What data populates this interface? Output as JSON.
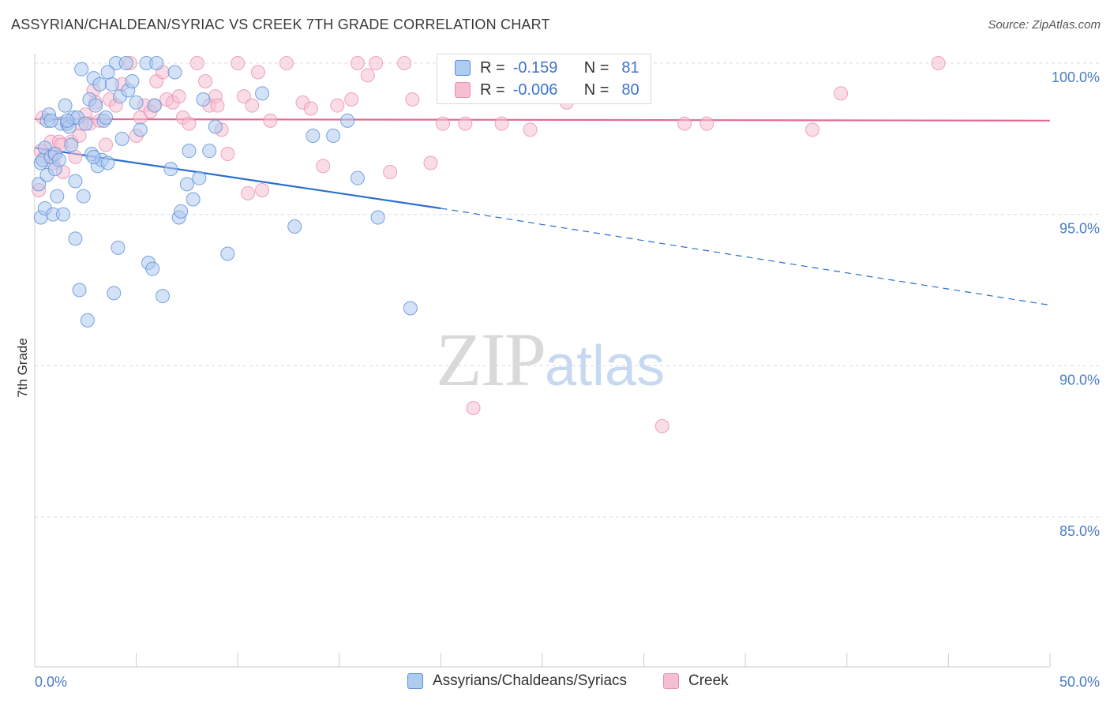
{
  "title": "ASSYRIAN/CHALDEAN/SYRIAC VS CREEK 7TH GRADE CORRELATION CHART",
  "source": "Source: ZipAtlas.com",
  "watermark": {
    "zip": "ZIP",
    "atlas": "atlas"
  },
  "colors": {
    "blue_fill": "#aecbf0",
    "blue_stroke": "#5b8fd6",
    "pink_fill": "#f6bfd1",
    "pink_stroke": "#e88fb0",
    "blue_line": "#2a6fcf",
    "pink_line": "#e06a93",
    "tick_text": "#4a7cc9"
  },
  "legend": {
    "rows": [
      {
        "r_label": "R =",
        "r_value": "-0.159",
        "n_label": "N =",
        "n_value": "81"
      },
      {
        "r_label": "R =",
        "r_value": "-0.006",
        "n_label": "N =",
        "n_value": "80"
      }
    ]
  },
  "bottom_legend": {
    "series1": "Assyrians/Chaldeans/Syriacs",
    "series2": "Creek"
  },
  "chart_data": {
    "type": "scatter",
    "title": "ASSYRIAN/CHALDEAN/SYRIAC VS CREEK 7TH GRADE CORRELATION CHART",
    "xlabel": "",
    "ylabel": "7th Grade",
    "xlim": [
      0,
      50
    ],
    "ylim": [
      80.5,
      100.8
    ],
    "x_tick_labels": [
      "0.0%",
      "50.0%"
    ],
    "y_ticks": [
      85,
      90,
      95,
      100
    ],
    "y_tick_labels": [
      "85.0%",
      "90.0%",
      "95.0%",
      "100.0%"
    ],
    "series": [
      {
        "name": "Assyrians/Chaldeans/Syriacs",
        "r": -0.159,
        "n": 81,
        "trend": {
          "x0": 0,
          "y0": 97.2,
          "x1": 20,
          "y1": 95.2,
          "dash_to_x": 50,
          "dash_to_y": 92.0
        },
        "points": [
          [
            0.2,
            96.0
          ],
          [
            0.3,
            94.9
          ],
          [
            0.3,
            96.7
          ],
          [
            0.4,
            96.8
          ],
          [
            0.5,
            97.2
          ],
          [
            0.5,
            95.2
          ],
          [
            0.6,
            98.1
          ],
          [
            0.6,
            96.3
          ],
          [
            0.7,
            98.3
          ],
          [
            0.8,
            96.9
          ],
          [
            0.9,
            95.0
          ],
          [
            1.0,
            96.5
          ],
          [
            1.0,
            97.0
          ],
          [
            1.2,
            96.8
          ],
          [
            1.3,
            98.0
          ],
          [
            1.4,
            95.0
          ],
          [
            1.5,
            98.6
          ],
          [
            1.6,
            98.0
          ],
          [
            1.7,
            97.9
          ],
          [
            1.8,
            97.3
          ],
          [
            1.9,
            98.2
          ],
          [
            2.0,
            96.1
          ],
          [
            2.0,
            94.2
          ],
          [
            2.1,
            98.2
          ],
          [
            2.2,
            92.5
          ],
          [
            2.3,
            99.8
          ],
          [
            2.4,
            95.6
          ],
          [
            2.5,
            98.0
          ],
          [
            2.6,
            91.5
          ],
          [
            2.7,
            98.8
          ],
          [
            2.8,
            97.0
          ],
          [
            2.9,
            99.5
          ],
          [
            3.0,
            98.6
          ],
          [
            3.1,
            96.6
          ],
          [
            3.2,
            99.3
          ],
          [
            3.3,
            96.8
          ],
          [
            3.4,
            98.1
          ],
          [
            3.5,
            98.2
          ],
          [
            3.6,
            96.7
          ],
          [
            3.8,
            99.3
          ],
          [
            3.9,
            92.4
          ],
          [
            4.0,
            100.0
          ],
          [
            4.1,
            93.9
          ],
          [
            4.2,
            98.9
          ],
          [
            4.3,
            97.5
          ],
          [
            4.5,
            100.0
          ],
          [
            4.6,
            99.1
          ],
          [
            4.8,
            99.4
          ],
          [
            5.0,
            98.7
          ],
          [
            5.2,
            97.8
          ],
          [
            5.5,
            100.0
          ],
          [
            5.6,
            93.4
          ],
          [
            5.8,
            93.2
          ],
          [
            5.9,
            98.6
          ],
          [
            6.0,
            100.0
          ],
          [
            6.3,
            92.3
          ],
          [
            6.7,
            96.5
          ],
          [
            6.9,
            99.7
          ],
          [
            7.1,
            94.9
          ],
          [
            7.2,
            95.1
          ],
          [
            7.5,
            96.0
          ],
          [
            7.6,
            97.1
          ],
          [
            7.8,
            95.5
          ],
          [
            8.1,
            96.2
          ],
          [
            8.3,
            98.8
          ],
          [
            8.6,
            97.1
          ],
          [
            8.9,
            97.9
          ],
          [
            9.5,
            93.7
          ],
          [
            11.2,
            99.0
          ],
          [
            12.8,
            94.6
          ],
          [
            13.7,
            97.6
          ],
          [
            14.7,
            97.6
          ],
          [
            15.4,
            98.1
          ],
          [
            15.9,
            96.2
          ],
          [
            16.9,
            94.9
          ],
          [
            18.5,
            91.9
          ],
          [
            1.1,
            95.6
          ],
          [
            2.9,
            96.9
          ],
          [
            0.8,
            98.1
          ],
          [
            3.6,
            99.7
          ],
          [
            1.6,
            98.1
          ]
        ]
      },
      {
        "name": "Creek",
        "r": -0.006,
        "n": 80,
        "trend": {
          "x0": 0,
          "y0": 98.15,
          "x1": 50,
          "y1": 98.1
        },
        "points": [
          [
            0.2,
            95.8
          ],
          [
            0.3,
            97.1
          ],
          [
            0.4,
            98.2
          ],
          [
            0.5,
            96.9
          ],
          [
            0.8,
            97.4
          ],
          [
            0.9,
            96.7
          ],
          [
            1.0,
            97.0
          ],
          [
            1.2,
            97.4
          ],
          [
            1.4,
            96.4
          ],
          [
            1.6,
            98.0
          ],
          [
            1.8,
            97.4
          ],
          [
            2.0,
            96.9
          ],
          [
            2.2,
            97.6
          ],
          [
            2.5,
            98.3
          ],
          [
            2.7,
            98.0
          ],
          [
            2.9,
            99.1
          ],
          [
            3.0,
            98.7
          ],
          [
            3.2,
            98.1
          ],
          [
            3.5,
            97.3
          ],
          [
            3.7,
            98.8
          ],
          [
            4.0,
            98.6
          ],
          [
            4.3,
            99.3
          ],
          [
            4.7,
            100.0
          ],
          [
            5.0,
            97.6
          ],
          [
            5.2,
            98.2
          ],
          [
            5.4,
            98.6
          ],
          [
            5.7,
            98.4
          ],
          [
            6.0,
            99.4
          ],
          [
            6.3,
            99.7
          ],
          [
            6.5,
            98.8
          ],
          [
            6.8,
            98.7
          ],
          [
            7.1,
            98.9
          ],
          [
            7.3,
            98.2
          ],
          [
            7.6,
            98.0
          ],
          [
            8.0,
            100.0
          ],
          [
            8.4,
            99.4
          ],
          [
            8.6,
            98.6
          ],
          [
            8.9,
            98.9
          ],
          [
            9.2,
            97.8
          ],
          [
            9.5,
            97.0
          ],
          [
            10.0,
            100.0
          ],
          [
            10.3,
            98.9
          ],
          [
            10.7,
            98.6
          ],
          [
            11.0,
            99.7
          ],
          [
            11.2,
            95.8
          ],
          [
            11.6,
            98.1
          ],
          [
            12.4,
            100.0
          ],
          [
            13.2,
            98.7
          ],
          [
            13.6,
            98.5
          ],
          [
            14.2,
            96.6
          ],
          [
            14.9,
            98.6
          ],
          [
            15.6,
            98.8
          ],
          [
            15.9,
            100.0
          ],
          [
            16.4,
            99.6
          ],
          [
            16.8,
            100.0
          ],
          [
            17.5,
            96.4
          ],
          [
            18.2,
            100.0
          ],
          [
            18.6,
            98.8
          ],
          [
            19.5,
            96.7
          ],
          [
            20.1,
            98.0
          ],
          [
            21.2,
            98.0
          ],
          [
            22.1,
            99.2
          ],
          [
            23.0,
            98.0
          ],
          [
            23.8,
            100.0
          ],
          [
            24.4,
            97.8
          ],
          [
            25.5,
            99.5
          ],
          [
            26.2,
            98.7
          ],
          [
            28.0,
            100.0
          ],
          [
            30.9,
            88.0
          ],
          [
            32.0,
            98.0
          ],
          [
            33.1,
            98.0
          ],
          [
            38.3,
            97.8
          ],
          [
            39.7,
            99.0
          ],
          [
            44.5,
            100.0
          ],
          [
            21.6,
            88.6
          ],
          [
            10.5,
            95.7
          ],
          [
            9.0,
            98.6
          ],
          [
            5.9,
            98.6
          ],
          [
            2.3,
            98.0
          ],
          [
            1.3,
            97.3
          ]
        ]
      }
    ]
  }
}
